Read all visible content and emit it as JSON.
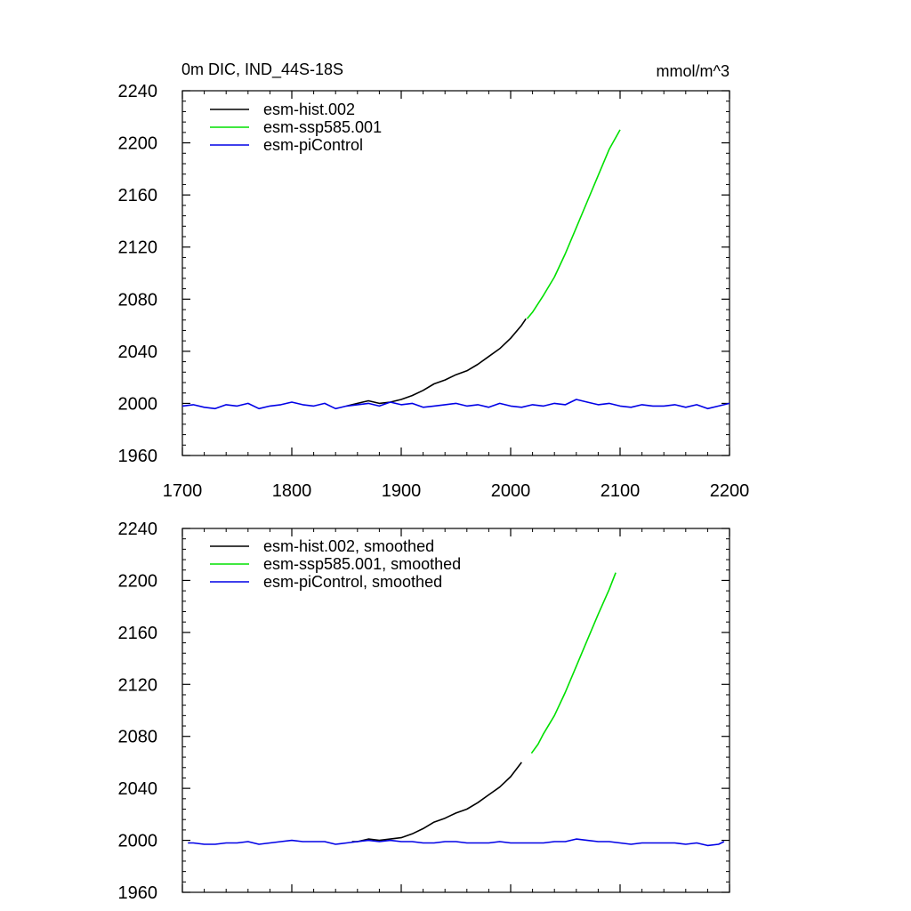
{
  "figure": {
    "title_left": "0m DIC, IND_44S-18S",
    "title_right": "mmol/m^3"
  },
  "colors": {
    "hist": "#000000",
    "ssp": "#00e000",
    "picontrol": "#0000e6",
    "axis": "#000000"
  },
  "chart_data": [
    {
      "type": "line",
      "title": "0m DIC, IND_44S-18S",
      "units": "mmol/m^3",
      "xlim": [
        1700,
        2200
      ],
      "ylim": [
        1960,
        2240
      ],
      "x_ticks": [
        1700,
        1800,
        1900,
        2000,
        2100,
        2200
      ],
      "y_ticks": [
        1960,
        2000,
        2040,
        2080,
        2120,
        2160,
        2200,
        2240
      ],
      "x_tick_labels_shown": true,
      "legend_position": "top-left",
      "series": [
        {
          "name": "esm-hist.002",
          "color_key": "hist",
          "x": [
            1850,
            1860,
            1870,
            1880,
            1890,
            1900,
            1910,
            1920,
            1930,
            1940,
            1950,
            1960,
            1970,
            1980,
            1990,
            2000,
            2010,
            2014
          ],
          "y": [
            1998,
            2000,
            2002,
            2000,
            2001,
            2003,
            2006,
            2010,
            2015,
            2018,
            2022,
            2025,
            2030,
            2036,
            2042,
            2050,
            2060,
            2065
          ]
        },
        {
          "name": "esm-ssp585.001",
          "color_key": "ssp",
          "x": [
            2015,
            2020,
            2030,
            2040,
            2050,
            2060,
            2070,
            2080,
            2090,
            2100
          ],
          "y": [
            2065,
            2070,
            2083,
            2097,
            2115,
            2135,
            2155,
            2175,
            2195,
            2210
          ]
        },
        {
          "name": "esm-piControl",
          "color_key": "picontrol",
          "x": [
            1700,
            1710,
            1720,
            1730,
            1740,
            1750,
            1760,
            1770,
            1780,
            1790,
            1800,
            1810,
            1820,
            1830,
            1840,
            1850,
            1860,
            1870,
            1880,
            1890,
            1900,
            1910,
            1920,
            1930,
            1940,
            1950,
            1960,
            1970,
            1980,
            1990,
            2000,
            2010,
            2020,
            2030,
            2040,
            2050,
            2060,
            2070,
            2080,
            2090,
            2100,
            2110,
            2120,
            2130,
            2140,
            2150,
            2160,
            2170,
            2180,
            2190,
            2200
          ],
          "y": [
            1998,
            1999,
            1997,
            1996,
            1999,
            1998,
            2000,
            1996,
            1998,
            1999,
            2001,
            1999,
            1998,
            2000,
            1996,
            1998,
            1999,
            2000,
            1998,
            2001,
            1999,
            2000,
            1997,
            1998,
            1999,
            2000,
            1998,
            1999,
            1997,
            2000,
            1998,
            1997,
            1999,
            1998,
            2000,
            1999,
            2003,
            2001,
            1999,
            2000,
            1998,
            1997,
            1999,
            1998,
            1998,
            1999,
            1997,
            1999,
            1996,
            1998,
            2000
          ]
        }
      ]
    },
    {
      "type": "line",
      "title": "",
      "units": "",
      "xlim": [
        1700,
        2200
      ],
      "ylim": [
        1960,
        2240
      ],
      "x_ticks": [
        1700,
        1800,
        1900,
        2000,
        2100,
        2200
      ],
      "y_ticks": [
        1960,
        2000,
        2040,
        2080,
        2120,
        2160,
        2200,
        2240
      ],
      "x_tick_labels_shown": false,
      "legend_position": "top-left",
      "series": [
        {
          "name": "esm-hist.002, smoothed",
          "color_key": "hist",
          "x": [
            1855,
            1860,
            1870,
            1880,
            1890,
            1900,
            1910,
            1920,
            1930,
            1940,
            1950,
            1960,
            1970,
            1980,
            1990,
            2000,
            2010
          ],
          "y": [
            1999,
            1999,
            2001,
            2000,
            2001,
            2002,
            2005,
            2009,
            2014,
            2017,
            2021,
            2024,
            2029,
            2035,
            2041,
            2049,
            2060
          ]
        },
        {
          "name": "esm-ssp585.001, smoothed",
          "color_key": "ssp",
          "x": [
            2019,
            2025,
            2030,
            2040,
            2050,
            2060,
            2070,
            2080,
            2090,
            2096
          ],
          "y": [
            2067,
            2074,
            2082,
            2096,
            2114,
            2134,
            2154,
            2174,
            2193,
            2206
          ]
        },
        {
          "name": "esm-piControl, smoothed",
          "color_key": "picontrol",
          "x": [
            1705,
            1710,
            1720,
            1730,
            1740,
            1750,
            1760,
            1770,
            1780,
            1790,
            1800,
            1810,
            1820,
            1830,
            1840,
            1850,
            1860,
            1870,
            1880,
            1890,
            1900,
            1910,
            1920,
            1930,
            1940,
            1950,
            1960,
            1970,
            1980,
            1990,
            2000,
            2010,
            2020,
            2030,
            2040,
            2050,
            2060,
            2070,
            2080,
            2090,
            2100,
            2110,
            2120,
            2130,
            2140,
            2150,
            2160,
            2170,
            2180,
            2190,
            2195
          ],
          "y": [
            1998,
            1998,
            1997,
            1997,
            1998,
            1998,
            1999,
            1997,
            1998,
            1999,
            2000,
            1999,
            1999,
            1999,
            1997,
            1998,
            1999,
            2000,
            1999,
            2000,
            1999,
            1999,
            1998,
            1998,
            1999,
            1999,
            1998,
            1998,
            1998,
            1999,
            1998,
            1998,
            1998,
            1998,
            1999,
            1999,
            2001,
            2000,
            1999,
            1999,
            1998,
            1997,
            1998,
            1998,
            1998,
            1998,
            1997,
            1998,
            1996,
            1997,
            1999
          ]
        }
      ]
    }
  ]
}
